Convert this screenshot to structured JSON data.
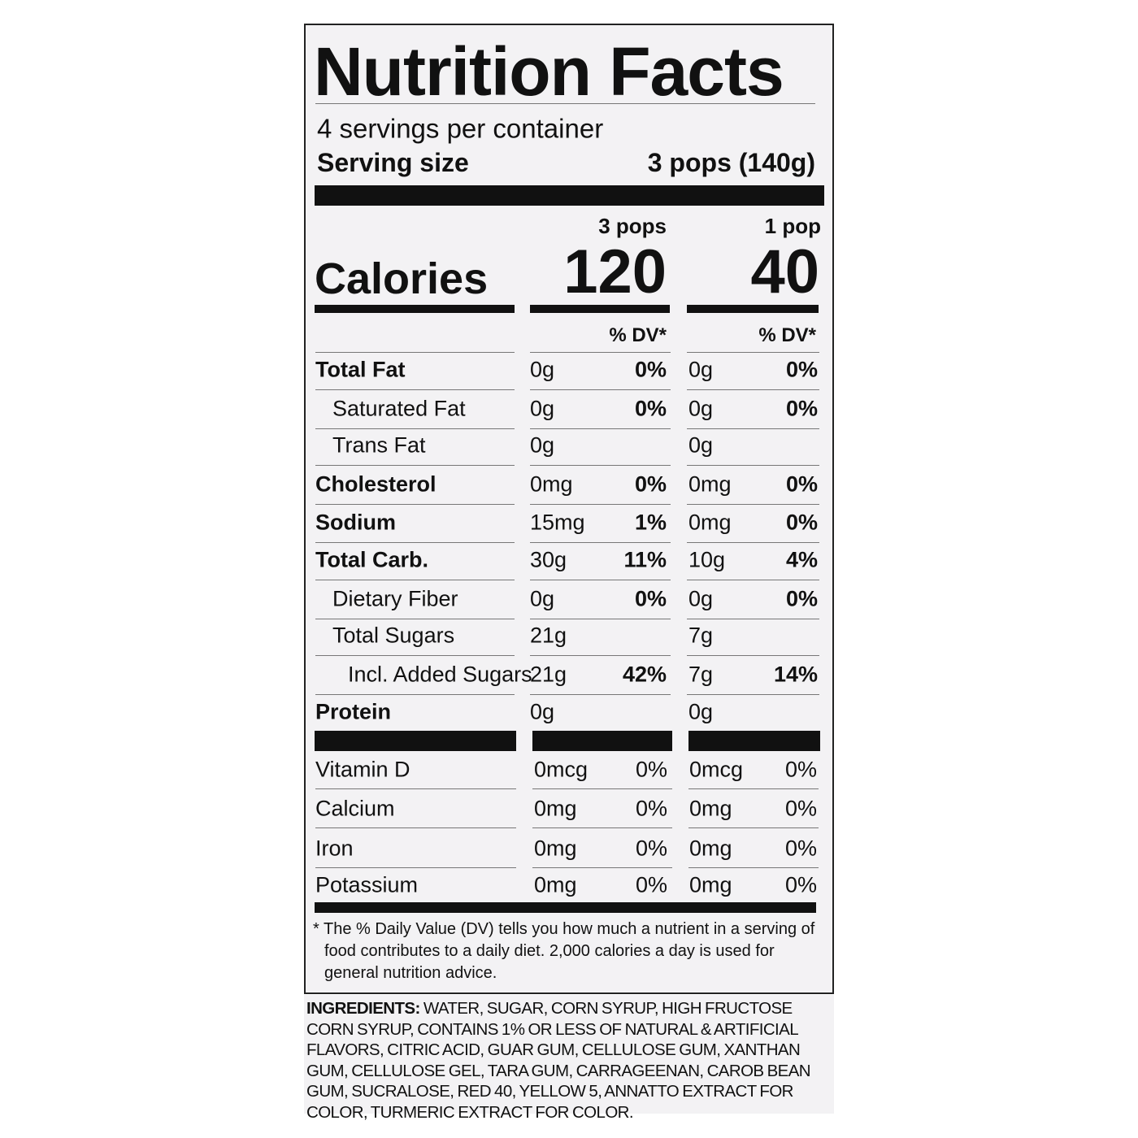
{
  "title": "Nutrition Facts",
  "servings_per_container": "4 servings per container",
  "serving_size": {
    "label": "Serving size",
    "value": "3 pops (140g)"
  },
  "columns": [
    "3 pops",
    "1 pop"
  ],
  "calories": {
    "label": "Calories",
    "values": [
      "120",
      "40"
    ]
  },
  "dv_header": [
    "% DV*",
    "% DV*"
  ],
  "nutrients": [
    [
      "Total Fat",
      "0g",
      "0%",
      "0g",
      "0%"
    ],
    [
      "Saturated Fat",
      "0g",
      "0%",
      "0g",
      "0%"
    ],
    [
      "Trans Fat",
      "0g",
      null,
      "0g",
      null
    ],
    [
      "Cholesterol",
      "0mg",
      "0%",
      "0mg",
      "0%"
    ],
    [
      "Sodium",
      "15mg",
      "1%",
      "0mg",
      "0%"
    ],
    [
      "Total Carb.",
      "30g",
      "11%",
      "10g",
      "4%"
    ],
    [
      "Dietary Fiber",
      "0g",
      "0%",
      "0g",
      "0%"
    ],
    [
      "Total Sugars",
      "21g",
      null,
      "7g",
      null
    ],
    [
      "Incl. Added Sugars",
      "21g",
      "42%",
      "7g",
      "14%"
    ],
    [
      "Protein",
      "0g",
      null,
      "0g",
      null
    ]
  ],
  "vitamins": [
    [
      "Vitamin D",
      "0mcg",
      "0%",
      "0mcg",
      "0%"
    ],
    [
      "Calcium",
      "0mg",
      "0%",
      "0mg",
      "0%"
    ],
    [
      "Iron",
      "0mg",
      "0%",
      "0mg",
      "0%"
    ],
    [
      "Potassium",
      "0mg",
      "0%",
      "0mg",
      "0%"
    ]
  ],
  "footnote": "* The % Daily Value (DV) tells you how much a nutrient in a serving of food contributes to a daily diet. 2,000 calories a day is used for general nutrition advice.",
  "ingredients": {
    "label": "INGREDIENTS:",
    "text": "WATER, SUGAR, CORN SYRUP, HIGH FRUCTOSE CORN SYRUP, CONTAINS 1% OR LESS OF NATURAL & ARTIFICIAL FLAVORS, CITRIC ACID, GUAR GUM, CELLULOSE GUM, XANTHAN GUM, CELLULOSE GEL, TARA GUM, CARRAGEENAN, CAROB BEAN GUM, SUCRALOSE, RED 40, YELLOW 5, ANNATTO EXTRACT FOR COLOR, TURMERIC EXTRACT FOR COLOR."
  }
}
